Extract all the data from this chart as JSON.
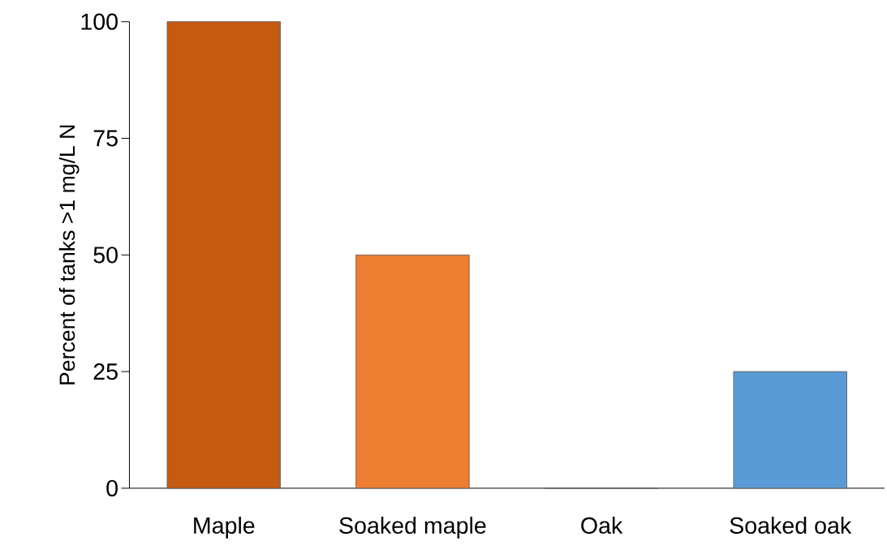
{
  "chart_data": {
    "type": "bar",
    "ylabel": "Percent of tanks >1 mg/L N",
    "categories": [
      "Maple",
      "Soaked maple",
      "Oak",
      "Soaked oak"
    ],
    "values": [
      100,
      50,
      0,
      25
    ],
    "colors": [
      "#c55a11",
      "#ed7d31",
      "#ed7d31",
      "#5b9bd5"
    ],
    "ylim": [
      0,
      100
    ],
    "yticks": [
      0,
      25,
      50,
      75,
      100
    ]
  }
}
